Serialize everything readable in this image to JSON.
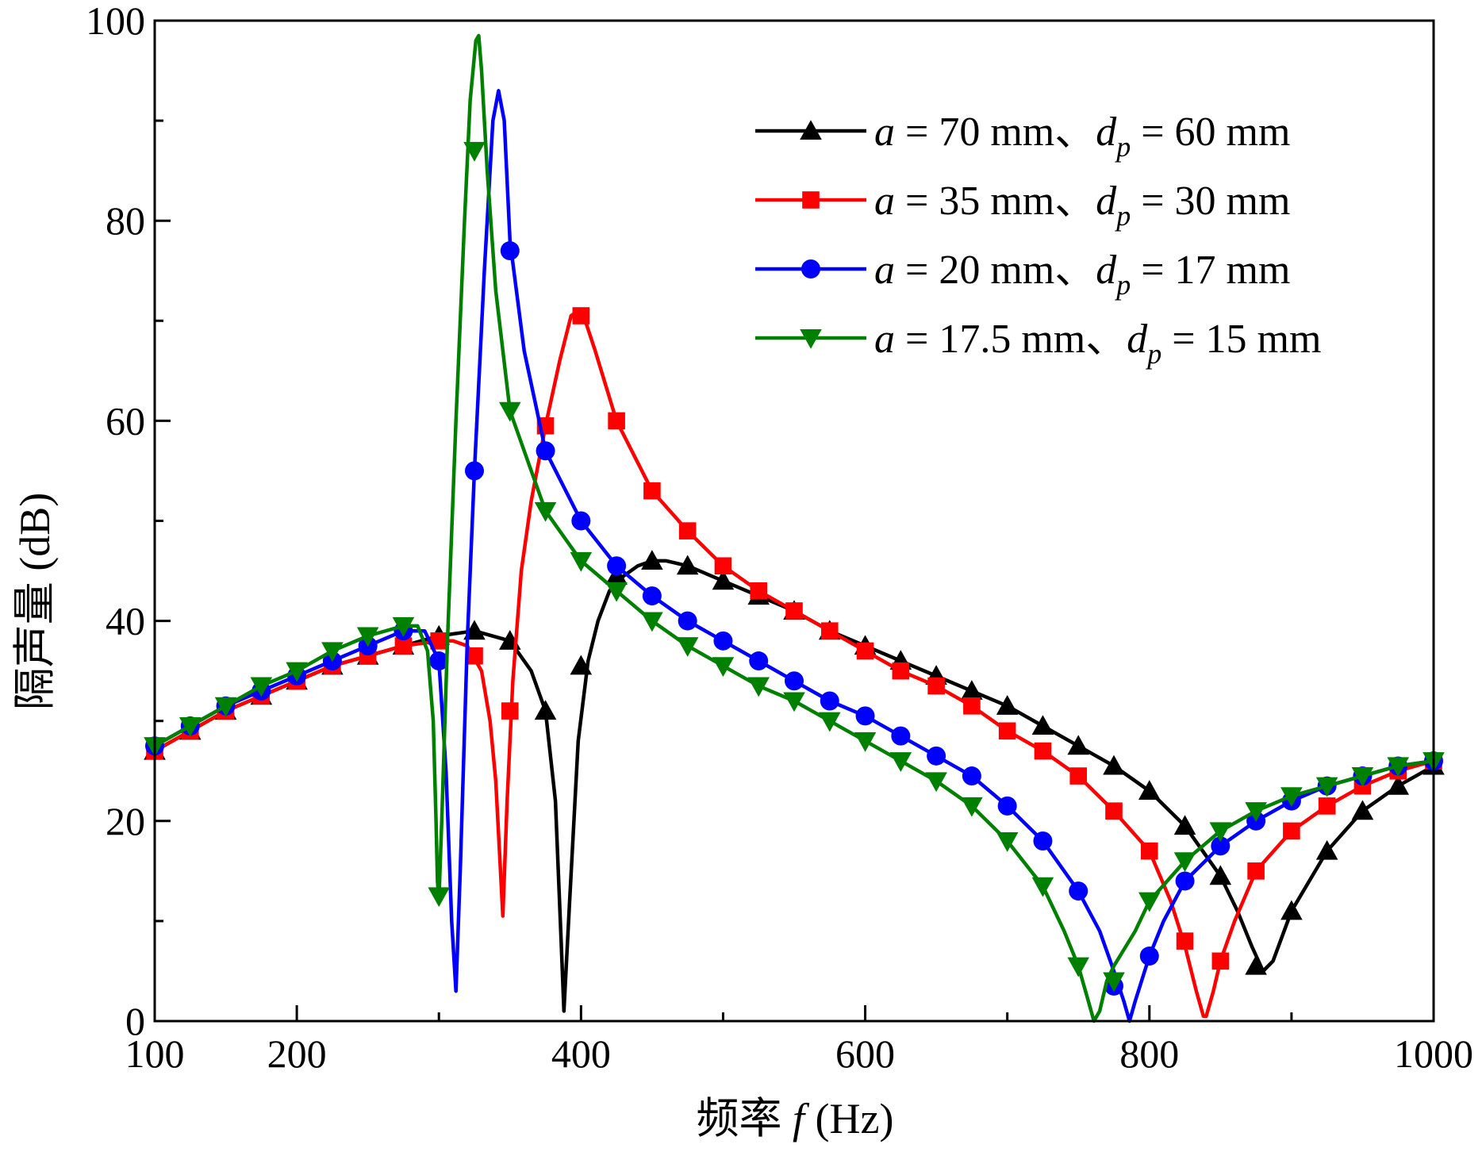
{
  "chart_data": {
    "type": "line",
    "title": "",
    "xlabel": {
      "prefix": "频率 ",
      "var": "f",
      "suffix": " (Hz)"
    },
    "ylabel": "隔声量 (dB)",
    "xlim": [
      100,
      1000
    ],
    "ylim": [
      0,
      100
    ],
    "x_major_ticks": [
      100,
      200,
      400,
      600,
      800,
      1000
    ],
    "x_tick_labels": [
      "100",
      "200",
      "400",
      "600",
      "800",
      "1000"
    ],
    "x_minor_ticks": [
      300,
      500,
      700,
      900
    ],
    "y_major_ticks": [
      0,
      20,
      40,
      60,
      80,
      100
    ],
    "y_tick_labels": [
      "0",
      "20",
      "40",
      "60",
      "80",
      "100"
    ],
    "y_minor_ticks": [
      10,
      30,
      50,
      70,
      90
    ],
    "grid": false,
    "legend_position": "top-right",
    "series": [
      {
        "name": "a = 70 mm、dp = 60 mm",
        "legend": {
          "a": "a",
          "t1": " = 70 mm、",
          "d": "d",
          "sub": "p",
          "t2": " = 60 mm"
        },
        "color": "#000000",
        "marker": "triangle-up",
        "x": [
          100,
          125,
          150,
          175,
          200,
          225,
          250,
          275,
          300,
          325,
          350,
          365,
          375,
          382,
          386,
          388,
          392,
          398,
          405,
          412,
          420,
          430,
          440,
          450,
          460,
          475,
          500,
          525,
          550,
          575,
          600,
          625,
          650,
          675,
          700,
          725,
          750,
          775,
          800,
          825,
          850,
          862,
          872,
          880,
          887,
          900,
          925,
          950,
          975,
          1000
        ],
        "y": [
          27,
          29,
          31,
          32.5,
          34,
          35.5,
          36.5,
          37.5,
          38.5,
          39,
          38,
          35,
          31,
          22,
          8,
          1,
          12,
          28,
          36,
          40,
          43,
          44.5,
          45.5,
          46,
          46,
          45.5,
          44,
          42.5,
          41,
          39,
          37.5,
          36,
          34.5,
          33,
          31.5,
          29.5,
          27.5,
          25.5,
          23,
          19.5,
          14.5,
          11,
          7.5,
          5,
          6,
          11,
          17,
          21,
          23.5,
          25.5
        ],
        "marker_x": [
          100,
          125,
          150,
          175,
          200,
          225,
          250,
          275,
          300,
          325,
          350,
          375,
          400,
          425,
          450,
          475,
          500,
          525,
          550,
          575,
          600,
          625,
          650,
          675,
          700,
          725,
          750,
          775,
          800,
          825,
          850,
          875,
          900,
          925,
          950,
          975,
          1000
        ],
        "marker_y": [
          27,
          29,
          31,
          32.5,
          34,
          35.5,
          36.5,
          37.5,
          38.5,
          39,
          38,
          31,
          35.5,
          44.5,
          46,
          45.5,
          44,
          42.5,
          41,
          39,
          37.5,
          36,
          34.5,
          33,
          31.5,
          29.5,
          27.5,
          25.5,
          23,
          19.5,
          14.5,
          5.5,
          11,
          17,
          21,
          23.5,
          25.5
        ]
      },
      {
        "name": "a = 35 mm、dp = 30 mm",
        "legend": {
          "a": "a",
          "t1": " = 35 mm、",
          "d": "d",
          "sub": "p",
          "t2": " = 30 mm"
        },
        "color": "#ff0000",
        "marker": "square",
        "x": [
          100,
          125,
          150,
          175,
          200,
          225,
          250,
          275,
          300,
          310,
          320,
          330,
          336,
          340,
          343,
          345,
          348,
          352,
          358,
          365,
          375,
          385,
          393,
          398,
          403,
          410,
          425,
          450,
          475,
          500,
          525,
          550,
          575,
          600,
          625,
          650,
          675,
          700,
          725,
          750,
          775,
          800,
          815,
          825,
          833,
          838,
          840,
          845,
          850,
          860,
          875,
          900,
          925,
          950,
          975,
          1000
        ],
        "y": [
          27,
          29,
          31,
          32.5,
          34,
          35.5,
          36.5,
          37.5,
          38,
          38,
          37.5,
          35,
          30,
          24,
          16,
          10.5,
          22,
          34,
          45,
          52,
          59.5,
          66,
          70.5,
          71,
          70,
          67,
          60,
          53,
          49,
          45.5,
          43,
          41,
          39,
          37,
          35,
          33.5,
          31.5,
          29,
          27,
          24.5,
          21,
          17,
          12,
          7.5,
          3,
          0.5,
          0.5,
          3,
          6,
          10,
          15,
          19,
          21.5,
          23.5,
          25,
          26
        ],
        "marker_x": [
          100,
          125,
          150,
          175,
          200,
          225,
          250,
          275,
          300,
          325,
          350,
          375,
          400,
          425,
          450,
          475,
          500,
          525,
          550,
          575,
          600,
          625,
          650,
          675,
          700,
          725,
          750,
          775,
          800,
          825,
          850,
          875,
          900,
          925,
          950,
          975,
          1000
        ],
        "marker_y": [
          27,
          29,
          31,
          32.5,
          34,
          35.5,
          36.5,
          37.5,
          38,
          36.5,
          31,
          59.5,
          70.5,
          60,
          53,
          49,
          45.5,
          43,
          41,
          39,
          37,
          35,
          33.5,
          31.5,
          29,
          27,
          24.5,
          21,
          17,
          8,
          6,
          15,
          19,
          21.5,
          23.5,
          25,
          26
        ]
      },
      {
        "name": "a = 20 mm、dp = 17 mm",
        "legend": {
          "a": "a",
          "t1": " = 20 mm、",
          "d": "d",
          "sub": "p",
          "t2": " = 17 mm"
        },
        "color": "#0000ff",
        "marker": "circle",
        "x": [
          100,
          125,
          150,
          175,
          200,
          225,
          250,
          275,
          290,
          300,
          305,
          309,
          312,
          315,
          320,
          325,
          332,
          338,
          342,
          346,
          350,
          360,
          375,
          400,
          425,
          450,
          475,
          500,
          525,
          550,
          575,
          600,
          625,
          650,
          675,
          700,
          725,
          750,
          765,
          775,
          782,
          786,
          790,
          800,
          810,
          825,
          850,
          875,
          900,
          925,
          950,
          975,
          1000
        ],
        "y": [
          27.5,
          29.5,
          31.5,
          33,
          34.5,
          36,
          37.5,
          39,
          39,
          36,
          25,
          10,
          3,
          15,
          38,
          55,
          75,
          90,
          93,
          90,
          78,
          67,
          57,
          50,
          45.5,
          42.5,
          40,
          38,
          36,
          34,
          32,
          30.5,
          28.5,
          26.5,
          24.5,
          21.5,
          18,
          13,
          9,
          5,
          2,
          0,
          2,
          6.5,
          10,
          14,
          17.5,
          20,
          22,
          23.5,
          24.5,
          25.5,
          26
        ],
        "marker_x": [
          100,
          125,
          150,
          175,
          200,
          225,
          250,
          275,
          300,
          325,
          350,
          375,
          400,
          425,
          450,
          475,
          500,
          525,
          550,
          575,
          600,
          625,
          650,
          675,
          700,
          725,
          750,
          775,
          800,
          825,
          850,
          875,
          900,
          925,
          950,
          975,
          1000
        ],
        "marker_y": [
          27.5,
          29.5,
          31.5,
          33,
          34.5,
          36,
          37.5,
          39,
          36,
          55,
          77,
          57,
          50,
          45.5,
          42.5,
          40,
          38,
          36,
          34,
          32,
          30.5,
          28.5,
          26.5,
          24.5,
          21.5,
          18,
          13,
          3.5,
          6.5,
          14,
          17.5,
          20,
          22,
          23.5,
          24.5,
          25.5,
          26
        ]
      },
      {
        "name": "a = 17.5 mm、dp = 15 mm",
        "legend": {
          "a": "a",
          "t1": " = 17.5 mm、",
          "d": "d",
          "sub": "p",
          "t2": " = 15 mm"
        },
        "color": "#008000",
        "marker": "triangle-down",
        "x": [
          100,
          125,
          150,
          175,
          200,
          225,
          250,
          275,
          285,
          292,
          296,
          298,
          299,
          300,
          302,
          306,
          312,
          318,
          322,
          326,
          328,
          330,
          334,
          340,
          350,
          365,
          375,
          400,
          425,
          450,
          475,
          500,
          525,
          550,
          575,
          600,
          625,
          650,
          675,
          700,
          725,
          740,
          750,
          757,
          761,
          765,
          770,
          775,
          790,
          800,
          825,
          850,
          875,
          900,
          925,
          950,
          975,
          1000
        ],
        "y": [
          27.5,
          29.5,
          31.5,
          33.5,
          35,
          37,
          38.5,
          39.5,
          39.5,
          37,
          30,
          20,
          14,
          12,
          20,
          38,
          60,
          80,
          92,
          98,
          98.5,
          95,
          85,
          73,
          61,
          55,
          51,
          46,
          43,
          40,
          37.5,
          35.5,
          33.5,
          32,
          30,
          28,
          26,
          24,
          21.5,
          18,
          13.5,
          9,
          5.5,
          2,
          0,
          1,
          4,
          5.5,
          9,
          12,
          16,
          19,
          21,
          22.5,
          23.5,
          24.5,
          25.5,
          26
        ],
        "marker_x": [
          100,
          125,
          150,
          175,
          200,
          225,
          250,
          275,
          300,
          325,
          350,
          375,
          400,
          425,
          450,
          475,
          500,
          525,
          550,
          575,
          600,
          625,
          650,
          675,
          700,
          725,
          750,
          775,
          800,
          825,
          850,
          875,
          900,
          925,
          950,
          975,
          1000
        ],
        "marker_y": [
          27.5,
          29.5,
          31.5,
          33.5,
          35,
          37,
          38.5,
          39.5,
          12.5,
          87,
          61,
          51,
          46,
          43,
          40,
          37.5,
          35.5,
          33.5,
          32,
          30,
          28,
          26,
          24,
          21.5,
          18,
          13.5,
          5.5,
          4,
          12,
          16,
          19,
          21,
          22.5,
          23.5,
          24.5,
          25.5,
          26
        ]
      }
    ]
  }
}
